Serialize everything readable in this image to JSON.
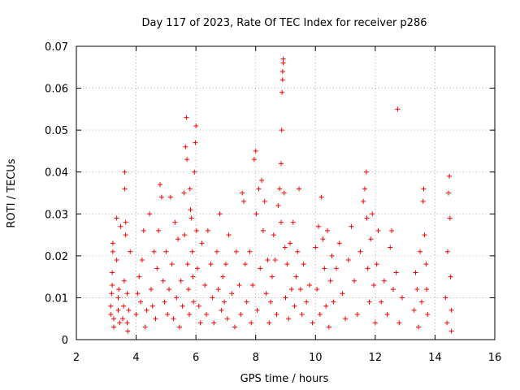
{
  "chart_data": {
    "type": "scatter",
    "title": "Day 117 of 2023, Rate Of TEC Index for receiver p286",
    "xlabel": "GPS time / hours",
    "ylabel": "ROTI / TECUs",
    "xlim": [
      2,
      16
    ],
    "ylim": [
      0,
      0.07
    ],
    "xticks": [
      2,
      4,
      6,
      8,
      10,
      12,
      14,
      16
    ],
    "xtick_labels": [
      "2",
      "4",
      "6",
      "8",
      "10",
      "12",
      "14",
      "16"
    ],
    "yticks": [
      0,
      0.01,
      0.02,
      0.03,
      0.04,
      0.05,
      0.06,
      0.07
    ],
    "ytick_labels": [
      "0",
      "0.01",
      "0.02",
      "0.03",
      "0.04",
      "0.05",
      "0.06",
      "0.07"
    ],
    "grid": true,
    "marker": "plus",
    "series": [
      {
        "color": "#ff0000",
        "points": [
          [
            3.15,
            0.006
          ],
          [
            3.15,
            0.008
          ],
          [
            3.18,
            0.011
          ],
          [
            3.2,
            0.013
          ],
          [
            3.2,
            0.016
          ],
          [
            3.22,
            0.021
          ],
          [
            3.22,
            0.023
          ],
          [
            3.25,
            0.005
          ],
          [
            3.25,
            0.003
          ],
          [
            3.35,
            0.029
          ],
          [
            3.35,
            0.019
          ],
          [
            3.4,
            0.007
          ],
          [
            3.4,
            0.01
          ],
          [
            3.42,
            0.012
          ],
          [
            3.45,
            0.004
          ],
          [
            3.48,
            0.027
          ],
          [
            3.55,
            0.005
          ],
          [
            3.58,
            0.008
          ],
          [
            3.6,
            0.014
          ],
          [
            3.62,
            0.036
          ],
          [
            3.62,
            0.04
          ],
          [
            3.65,
            0.028
          ],
          [
            3.65,
            0.025
          ],
          [
            3.7,
            0.011
          ],
          [
            3.7,
            0.004
          ],
          [
            3.72,
            0.002
          ],
          [
            3.75,
            0.007
          ],
          [
            3.8,
            0.021
          ],
          [
            4.0,
            0.006
          ],
          [
            4.05,
            0.011
          ],
          [
            4.1,
            0.015
          ],
          [
            4.15,
            0.009
          ],
          [
            4.2,
            0.019
          ],
          [
            4.25,
            0.026
          ],
          [
            4.3,
            0.003
          ],
          [
            4.35,
            0.007
          ],
          [
            4.45,
            0.03
          ],
          [
            4.5,
            0.012
          ],
          [
            4.55,
            0.008
          ],
          [
            4.6,
            0.021
          ],
          [
            4.65,
            0.005
          ],
          [
            4.7,
            0.017
          ],
          [
            4.75,
            0.026
          ],
          [
            4.8,
            0.037
          ],
          [
            4.85,
            0.034
          ],
          [
            4.9,
            0.014
          ],
          [
            4.95,
            0.009
          ],
          [
            5.0,
            0.021
          ],
          [
            5.05,
            0.006
          ],
          [
            5.1,
            0.012
          ],
          [
            5.15,
            0.034
          ],
          [
            5.2,
            0.018
          ],
          [
            5.25,
            0.005
          ],
          [
            5.3,
            0.028
          ],
          [
            5.35,
            0.01
          ],
          [
            5.4,
            0.024
          ],
          [
            5.45,
            0.003
          ],
          [
            5.5,
            0.014
          ],
          [
            5.55,
            0.008
          ],
          [
            5.6,
            0.035
          ],
          [
            5.62,
            0.025
          ],
          [
            5.65,
            0.046
          ],
          [
            5.68,
            0.053
          ],
          [
            5.7,
            0.043
          ],
          [
            5.72,
            0.018
          ],
          [
            5.75,
            0.012
          ],
          [
            5.78,
            0.006
          ],
          [
            5.8,
            0.036
          ],
          [
            5.82,
            0.031
          ],
          [
            5.85,
            0.029
          ],
          [
            5.88,
            0.021
          ],
          [
            5.9,
            0.015
          ],
          [
            5.92,
            0.009
          ],
          [
            5.95,
            0.04
          ],
          [
            5.98,
            0.047
          ],
          [
            6.0,
            0.051
          ],
          [
            6.02,
            0.026
          ],
          [
            6.05,
            0.017
          ],
          [
            6.1,
            0.008
          ],
          [
            6.15,
            0.004
          ],
          [
            6.2,
            0.023
          ],
          [
            6.3,
            0.013
          ],
          [
            6.35,
            0.006
          ],
          [
            6.4,
            0.026
          ],
          [
            6.5,
            0.018
          ],
          [
            6.55,
            0.01
          ],
          [
            6.6,
            0.004
          ],
          [
            6.7,
            0.021
          ],
          [
            6.75,
            0.012
          ],
          [
            6.8,
            0.03
          ],
          [
            6.85,
            0.007
          ],
          [
            6.9,
            0.015
          ],
          [
            6.95,
            0.009
          ],
          [
            7.0,
            0.018
          ],
          [
            7.05,
            0.005
          ],
          [
            7.1,
            0.025
          ],
          [
            7.2,
            0.011
          ],
          [
            7.3,
            0.003
          ],
          [
            7.35,
            0.021
          ],
          [
            7.45,
            0.013
          ],
          [
            7.5,
            0.006
          ],
          [
            7.55,
            0.035
          ],
          [
            7.6,
            0.033
          ],
          [
            7.65,
            0.018
          ],
          [
            7.7,
            0.009
          ],
          [
            7.8,
            0.021
          ],
          [
            7.85,
            0.004
          ],
          [
            7.9,
            0.013
          ],
          [
            7.95,
            0.043
          ],
          [
            8.0,
            0.045
          ],
          [
            8.02,
            0.03
          ],
          [
            8.05,
            0.007
          ],
          [
            8.1,
            0.036
          ],
          [
            8.15,
            0.017
          ],
          [
            8.2,
            0.038
          ],
          [
            8.25,
            0.026
          ],
          [
            8.3,
            0.033
          ],
          [
            8.35,
            0.011
          ],
          [
            8.4,
            0.019
          ],
          [
            8.45,
            0.004
          ],
          [
            8.5,
            0.009
          ],
          [
            8.55,
            0.015
          ],
          [
            8.6,
            0.025
          ],
          [
            8.65,
            0.019
          ],
          [
            8.7,
            0.006
          ],
          [
            8.75,
            0.032
          ],
          [
            8.8,
            0.036
          ],
          [
            8.85,
            0.028
          ],
          [
            8.85,
            0.042
          ],
          [
            8.87,
            0.05
          ],
          [
            8.88,
            0.059
          ],
          [
            8.9,
            0.062
          ],
          [
            8.9,
            0.064
          ],
          [
            8.92,
            0.066
          ],
          [
            8.92,
            0.067
          ],
          [
            8.95,
            0.035
          ],
          [
            8.98,
            0.022
          ],
          [
            9.0,
            0.01
          ],
          [
            9.05,
            0.018
          ],
          [
            9.1,
            0.005
          ],
          [
            9.15,
            0.023
          ],
          [
            9.2,
            0.012
          ],
          [
            9.25,
            0.028
          ],
          [
            9.3,
            0.008
          ],
          [
            9.35,
            0.015
          ],
          [
            9.4,
            0.021
          ],
          [
            9.45,
            0.036
          ],
          [
            9.5,
            0.012
          ],
          [
            9.55,
            0.006
          ],
          [
            9.6,
            0.018
          ],
          [
            9.7,
            0.009
          ],
          [
            9.8,
            0.013
          ],
          [
            9.9,
            0.004
          ],
          [
            10.0,
            0.022
          ],
          [
            10.05,
            0.012
          ],
          [
            10.1,
            0.027
          ],
          [
            10.15,
            0.006
          ],
          [
            10.2,
            0.034
          ],
          [
            10.25,
            0.024
          ],
          [
            10.3,
            0.017
          ],
          [
            10.35,
            0.008
          ],
          [
            10.4,
            0.026
          ],
          [
            10.45,
            0.003
          ],
          [
            10.5,
            0.014
          ],
          [
            10.55,
            0.02
          ],
          [
            10.6,
            0.009
          ],
          [
            10.7,
            0.017
          ],
          [
            10.8,
            0.023
          ],
          [
            10.9,
            0.011
          ],
          [
            11.0,
            0.005
          ],
          [
            11.1,
            0.019
          ],
          [
            11.2,
            0.027
          ],
          [
            11.3,
            0.014
          ],
          [
            11.4,
            0.006
          ],
          [
            11.5,
            0.021
          ],
          [
            11.6,
            0.033
          ],
          [
            11.65,
            0.036
          ],
          [
            11.7,
            0.04
          ],
          [
            11.72,
            0.029
          ],
          [
            11.75,
            0.017
          ],
          [
            11.8,
            0.009
          ],
          [
            11.85,
            0.024
          ],
          [
            11.9,
            0.03
          ],
          [
            11.95,
            0.013
          ],
          [
            12.0,
            0.004
          ],
          [
            12.05,
            0.018
          ],
          [
            12.1,
            0.026
          ],
          [
            12.2,
            0.009
          ],
          [
            12.3,
            0.014
          ],
          [
            12.4,
            0.006
          ],
          [
            12.5,
            0.022
          ],
          [
            12.55,
            0.026
          ],
          [
            12.6,
            0.012
          ],
          [
            12.7,
            0.016
          ],
          [
            12.75,
            0.055
          ],
          [
            12.8,
            0.004
          ],
          [
            12.9,
            0.01
          ],
          [
            13.3,
            0.007
          ],
          [
            13.35,
            0.016
          ],
          [
            13.4,
            0.012
          ],
          [
            13.45,
            0.003
          ],
          [
            13.5,
            0.021
          ],
          [
            13.55,
            0.009
          ],
          [
            13.6,
            0.033
          ],
          [
            13.62,
            0.036
          ],
          [
            13.65,
            0.025
          ],
          [
            13.7,
            0.018
          ],
          [
            13.72,
            0.012
          ],
          [
            13.75,
            0.006
          ],
          [
            14.35,
            0.01
          ],
          [
            14.4,
            0.004
          ],
          [
            14.42,
            0.021
          ],
          [
            14.45,
            0.035
          ],
          [
            14.48,
            0.039
          ],
          [
            14.5,
            0.029
          ],
          [
            14.52,
            0.015
          ],
          [
            14.55,
            0.007
          ],
          [
            14.55,
            0.002
          ]
        ]
      }
    ]
  }
}
